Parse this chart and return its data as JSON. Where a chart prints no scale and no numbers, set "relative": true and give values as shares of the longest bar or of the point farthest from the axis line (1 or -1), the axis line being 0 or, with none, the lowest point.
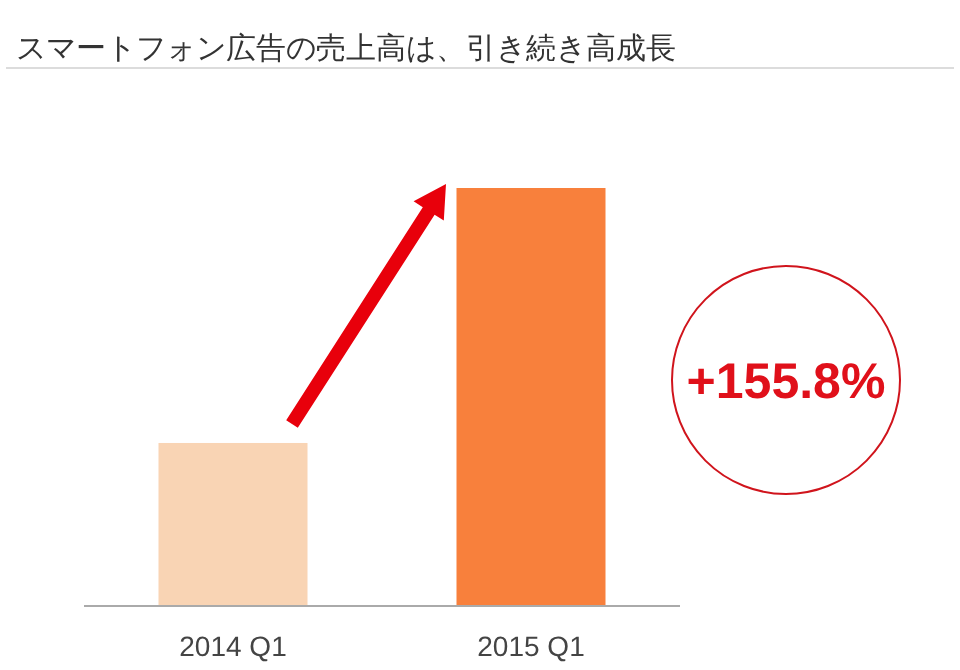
{
  "chart_data": {
    "type": "bar",
    "title": "スマートフォン広告の売上高は、引き続き高成長",
    "categories": [
      "2014 Q1",
      "2015 Q1"
    ],
    "values": [
      0.39,
      1
    ],
    "colors": [
      "#f9d4b4",
      "#f8803c"
    ],
    "relative": true,
    "annotations": [
      "+155.8%"
    ]
  }
}
